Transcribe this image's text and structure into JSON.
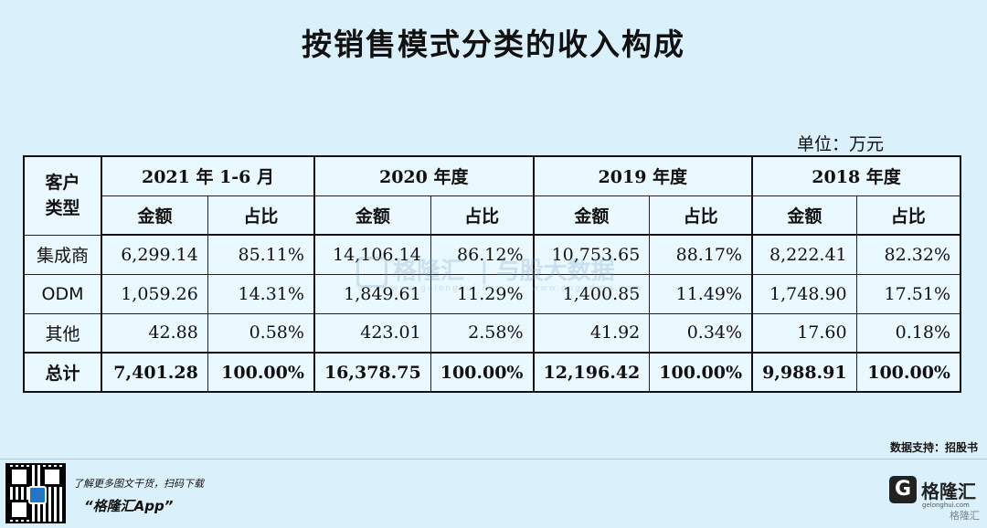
{
  "title": "按销售模式分类的收入构成",
  "unit": "单位：万元",
  "chart_data": {
    "type": "table",
    "header_type": "客户类型",
    "years": [
      "2021 年 1-6 月",
      "2020 年度",
      "2019 年度",
      "2018 年度"
    ],
    "sub_headers": [
      "金额",
      "占比"
    ],
    "rows": [
      {
        "type": "集成商",
        "cells": [
          "6,299.14",
          "85.11%",
          "14,106.14",
          "86.12%",
          "10,753.65",
          "88.17%",
          "8,222.41",
          "82.32%"
        ]
      },
      {
        "type": "ODM",
        "cells": [
          "1,059.26",
          "14.31%",
          "1,849.61",
          "11.29%",
          "1,400.85",
          "11.49%",
          "1,748.90",
          "17.51%"
        ]
      },
      {
        "type": "其他",
        "cells": [
          "42.88",
          "0.58%",
          "423.01",
          "2.58%",
          "41.92",
          "0.34%",
          "17.60",
          "0.18%"
        ]
      }
    ],
    "total": {
      "type": "总计",
      "cells": [
        "7,401.28",
        "100.00%",
        "16,378.75",
        "100.00%",
        "12,196.42",
        "100.00%",
        "9,988.91",
        "100.00%"
      ]
    }
  },
  "watermark": {
    "brand": "格隆汇",
    "sub": "www.gelonghui.com",
    "divider_text": "|",
    "tagline": "与股大数据",
    "tagline_url": "www.gogudata.com"
  },
  "source": "数据支持：招股书",
  "footer": {
    "promo_line": "了解更多图文干货，扫码下载",
    "app_name": "“格隆汇App”",
    "logo_letter": "G",
    "logo_name": "格隆汇",
    "logo_url": "gelonghui.com",
    "corner_mark": "格隆汇"
  }
}
